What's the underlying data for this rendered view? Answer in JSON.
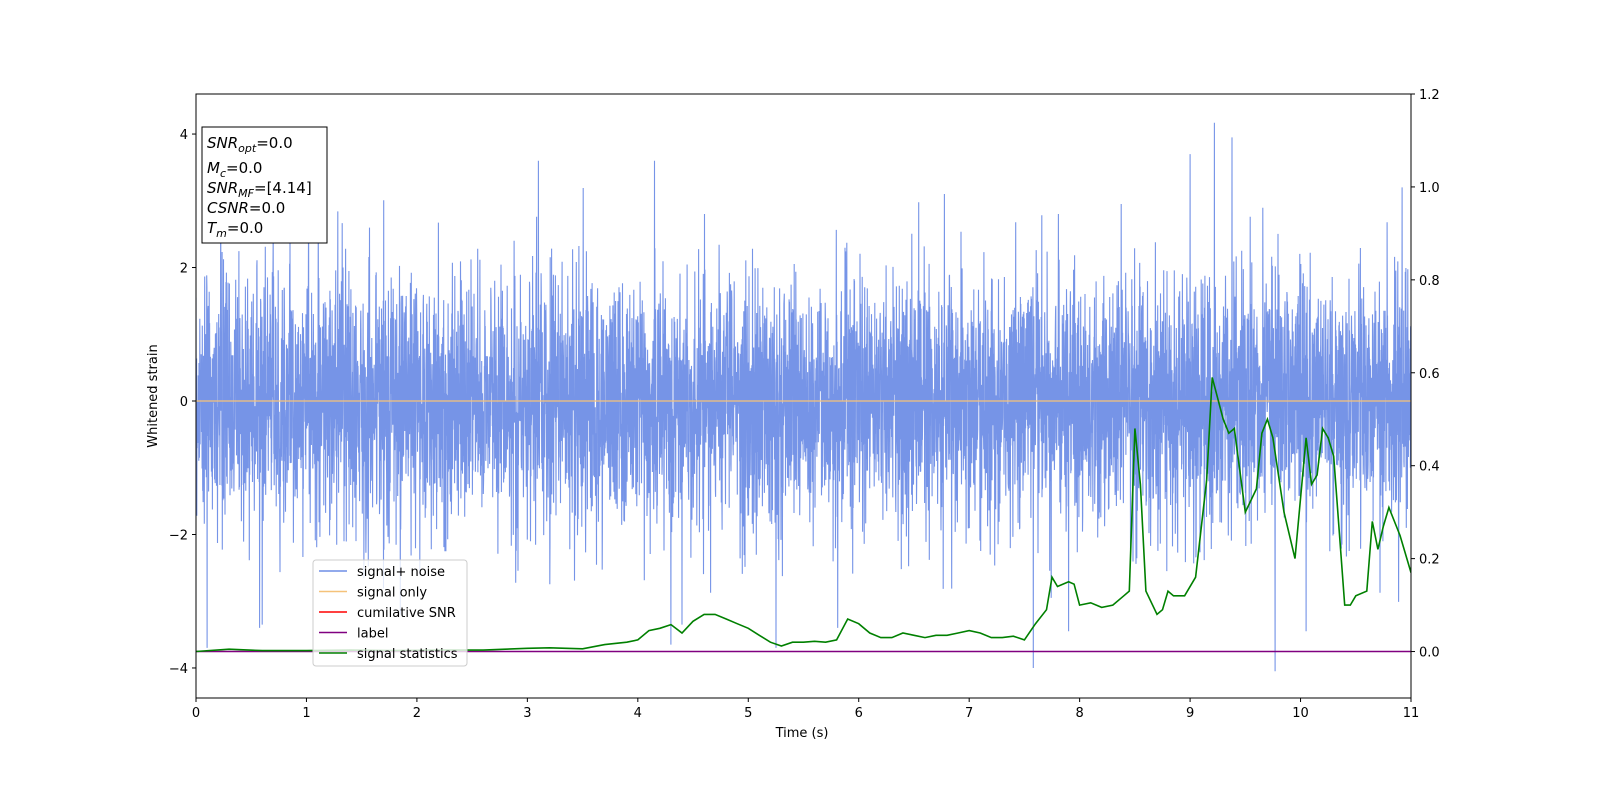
{
  "chart_data": {
    "type": "line",
    "xlabel": "Time (s)",
    "ylabel": "Whitened strain",
    "xlim": [
      0,
      11
    ],
    "ylim": [
      -4.45,
      4.6
    ],
    "y2lim": [
      -0.1,
      1.2
    ],
    "xticks": [
      "0",
      "1",
      "2",
      "3",
      "4",
      "5",
      "6",
      "7",
      "8",
      "9",
      "10",
      "11"
    ],
    "yticks": [
      "−4",
      "−2",
      "0",
      "2",
      "4"
    ],
    "y2ticks": [
      "0.0",
      "0.2",
      "0.4",
      "0.6",
      "0.8",
      "1.0",
      "1.2"
    ],
    "info_box": {
      "snr_opt": {
        "symbol": "SNR",
        "sub": "opt",
        "value": "=0.0"
      },
      "mc": {
        "symbol": "M",
        "sub": "c",
        "value": "=0.0"
      },
      "snr_mf": {
        "symbol": "SNR",
        "sub": "MF",
        "value": "=[4.14]"
      },
      "csnr": {
        "symbol": "CSNR",
        "sub": "",
        "value": "=0.0"
      },
      "tm": {
        "symbol": "T",
        "sub": "m",
        "value": "=0.0"
      }
    },
    "legend": {
      "placement": "lower-left",
      "entries": [
        {
          "label": "signal+ noise",
          "color": "#6f8ee6"
        },
        {
          "label": "signal only",
          "color": "#f5c27a"
        },
        {
          "label": "cumilative SNR",
          "color": "#ff0000"
        },
        {
          "label": "label",
          "color": "#800080"
        },
        {
          "label": "signal statistics",
          "color": "#008000"
        }
      ]
    },
    "series": [
      {
        "name": "signal+ noise",
        "axis": "left",
        "color": "#6f8ee6",
        "kind": "whitened gaussian noise, std ~0.95, range approx -4.05 to 4.17",
        "spikes": [
          {
            "x": 0.1,
            "y": -3.7
          },
          {
            "x": 0.6,
            "y": -3.35
          },
          {
            "x": 1.02,
            "y": 2.95
          },
          {
            "x": 1.85,
            "y": -3.2
          },
          {
            "x": 3.1,
            "y": 3.6
          },
          {
            "x": 4.15,
            "y": 3.6
          },
          {
            "x": 4.3,
            "y": -3.65
          },
          {
            "x": 4.4,
            "y": -3.35
          },
          {
            "x": 5.25,
            "y": -3.7
          },
          {
            "x": 7.58,
            "y": -4.0
          },
          {
            "x": 7.9,
            "y": -3.45
          },
          {
            "x": 9.0,
            "y": 3.7
          },
          {
            "x": 9.22,
            "y": 4.17
          },
          {
            "x": 9.38,
            "y": 3.95
          },
          {
            "x": 9.77,
            "y": -4.05
          },
          {
            "x": 10.05,
            "y": -3.45
          },
          {
            "x": 10.92,
            "y": 3.2
          }
        ]
      },
      {
        "name": "signal only",
        "axis": "left",
        "color": "#f5c27a",
        "x": [
          0,
          11
        ],
        "y": [
          0,
          0
        ]
      },
      {
        "name": "label",
        "axis": "right",
        "color": "#800080",
        "x": [
          0,
          11
        ],
        "y": [
          0,
          0
        ]
      },
      {
        "name": "signal statistics",
        "axis": "right",
        "color": "#008000",
        "x": [
          0.0,
          0.3,
          0.6,
          1.0,
          1.4,
          1.8,
          2.2,
          2.6,
          2.8,
          3.0,
          3.2,
          3.5,
          3.7,
          3.9,
          4.0,
          4.1,
          4.2,
          4.3,
          4.4,
          4.5,
          4.6,
          4.7,
          4.8,
          4.9,
          5.0,
          5.1,
          5.2,
          5.3,
          5.4,
          5.5,
          5.6,
          5.7,
          5.8,
          5.9,
          6.0,
          6.1,
          6.2,
          6.3,
          6.4,
          6.5,
          6.6,
          6.7,
          6.8,
          6.9,
          7.0,
          7.1,
          7.2,
          7.3,
          7.4,
          7.5,
          7.6,
          7.7,
          7.75,
          7.8,
          7.9,
          7.95,
          8.0,
          8.1,
          8.2,
          8.3,
          8.4,
          8.45,
          8.5,
          8.55,
          8.6,
          8.7,
          8.75,
          8.8,
          8.85,
          8.95,
          9.05,
          9.15,
          9.2,
          9.3,
          9.35,
          9.4,
          9.5,
          9.6,
          9.65,
          9.7,
          9.75,
          9.85,
          9.95,
          10.05,
          10.1,
          10.15,
          10.2,
          10.25,
          10.3,
          10.4,
          10.45,
          10.5,
          10.6,
          10.65,
          10.7,
          10.75,
          10.8,
          10.9,
          11.0
        ],
        "y": [
          0.0,
          0.005,
          0.002,
          0.002,
          0.003,
          0.002,
          0.003,
          0.003,
          0.005,
          0.007,
          0.008,
          0.006,
          0.015,
          0.02,
          0.025,
          0.045,
          0.05,
          0.058,
          0.04,
          0.065,
          0.08,
          0.08,
          0.07,
          0.06,
          0.05,
          0.035,
          0.02,
          0.012,
          0.02,
          0.02,
          0.022,
          0.02,
          0.025,
          0.07,
          0.06,
          0.04,
          0.03,
          0.03,
          0.04,
          0.035,
          0.03,
          0.035,
          0.035,
          0.04,
          0.045,
          0.04,
          0.03,
          0.03,
          0.033,
          0.025,
          0.06,
          0.09,
          0.16,
          0.14,
          0.15,
          0.145,
          0.1,
          0.105,
          0.095,
          0.1,
          0.12,
          0.13,
          0.48,
          0.36,
          0.13,
          0.08,
          0.09,
          0.13,
          0.12,
          0.12,
          0.16,
          0.37,
          0.59,
          0.5,
          0.47,
          0.48,
          0.3,
          0.35,
          0.47,
          0.5,
          0.46,
          0.3,
          0.2,
          0.46,
          0.36,
          0.38,
          0.48,
          0.46,
          0.42,
          0.1,
          0.1,
          0.12,
          0.13,
          0.28,
          0.22,
          0.27,
          0.31,
          0.25,
          0.17
        ]
      }
    ]
  }
}
